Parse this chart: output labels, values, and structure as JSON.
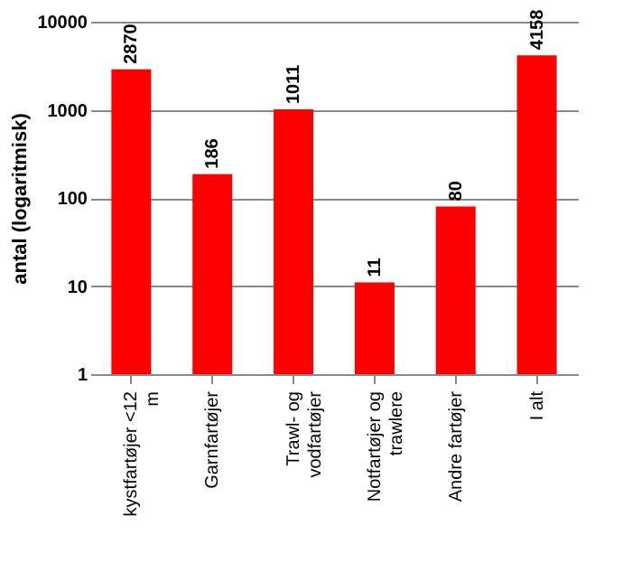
{
  "chart_data": {
    "type": "bar",
    "ylabel": "antal (logaritmisk)",
    "categories": [
      "kystfartøjer <12 m",
      "Garnfartøjer",
      "Trawl- og vodfartøjer",
      "Notfartøjer og trawlere",
      "Andre fartøjer",
      "I alt"
    ],
    "values": [
      2870,
      186,
      1011,
      11,
      80,
      4158
    ],
    "color": "#ff0000",
    "ylim": [
      1,
      10000
    ],
    "yticks": [
      1,
      10,
      100,
      1000,
      10000
    ],
    "log": true,
    "grid": "y",
    "data_labels": true
  }
}
